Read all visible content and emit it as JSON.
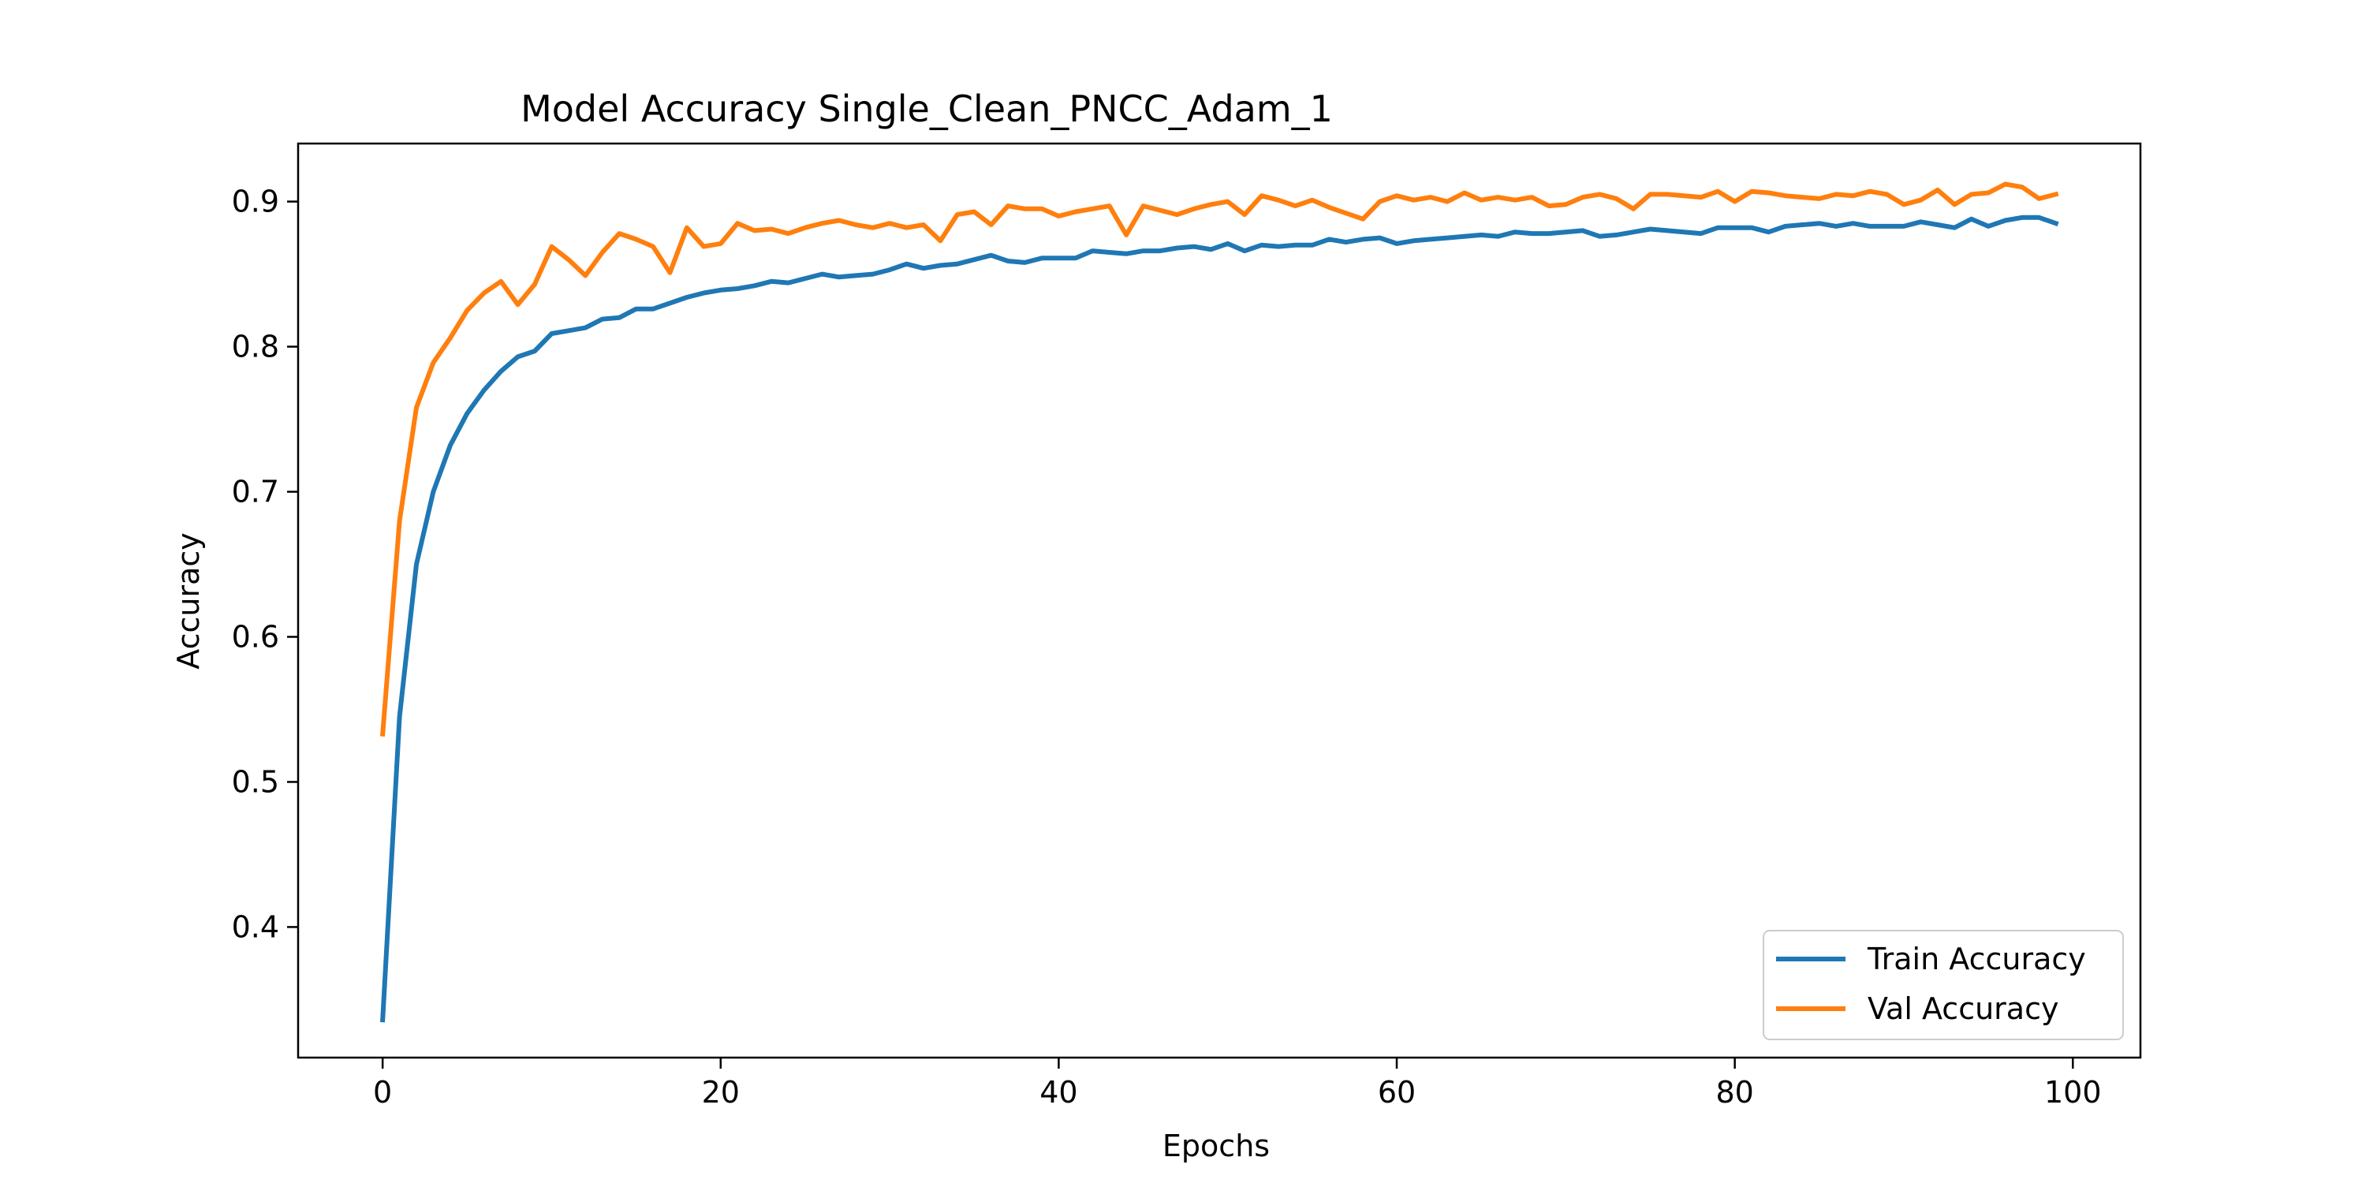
{
  "chart_data": {
    "type": "line",
    "title": "Model Accuracy Single_Clean_PNCC_Adam_1",
    "xlabel": "Epochs",
    "ylabel": "Accuracy",
    "xlim": [
      -5,
      104
    ],
    "ylim": [
      0.31,
      0.94
    ],
    "x_ticks": [
      0,
      20,
      40,
      60,
      80,
      100
    ],
    "y_ticks": [
      0.4,
      0.5,
      0.6,
      0.7,
      0.8,
      0.9
    ],
    "x_tick_labels": [
      "0",
      "20",
      "40",
      "60",
      "80",
      "100"
    ],
    "y_tick_labels": [
      "0.4",
      "0.5",
      "0.6",
      "0.7",
      "0.8",
      "0.9"
    ],
    "grid": false,
    "legend_position": "lower-right",
    "series": [
      {
        "name": "Train Accuracy",
        "color": "#1f77b4",
        "values": [
          0.336,
          0.545,
          0.65,
          0.7,
          0.732,
          0.754,
          0.77,
          0.783,
          0.793,
          0.797,
          0.809,
          0.811,
          0.813,
          0.819,
          0.82,
          0.826,
          0.826,
          0.83,
          0.834,
          0.837,
          0.839,
          0.84,
          0.842,
          0.845,
          0.844,
          0.847,
          0.85,
          0.848,
          0.849,
          0.85,
          0.853,
          0.857,
          0.854,
          0.856,
          0.857,
          0.86,
          0.863,
          0.859,
          0.858,
          0.861,
          0.861,
          0.861,
          0.866,
          0.865,
          0.864,
          0.866,
          0.866,
          0.868,
          0.869,
          0.867,
          0.871,
          0.866,
          0.87,
          0.869,
          0.87,
          0.87,
          0.874,
          0.872,
          0.874,
          0.875,
          0.871,
          0.873,
          0.874,
          0.875,
          0.876,
          0.877,
          0.876,
          0.879,
          0.878,
          0.878,
          0.879,
          0.88,
          0.876,
          0.877,
          0.879,
          0.881,
          0.88,
          0.879,
          0.878,
          0.882,
          0.882,
          0.882,
          0.879,
          0.883,
          0.884,
          0.885,
          0.883,
          0.885,
          0.883,
          0.883,
          0.883,
          0.886,
          0.884,
          0.882,
          0.888,
          0.883,
          0.887,
          0.889,
          0.889,
          0.885
        ]
      },
      {
        "name": "Val Accuracy",
        "color": "#ff7f0e",
        "values": [
          0.533,
          0.68,
          0.758,
          0.789,
          0.806,
          0.825,
          0.837,
          0.845,
          0.829,
          0.843,
          0.869,
          0.86,
          0.849,
          0.865,
          0.878,
          0.874,
          0.869,
          0.851,
          0.882,
          0.869,
          0.871,
          0.885,
          0.88,
          0.881,
          0.878,
          0.882,
          0.885,
          0.887,
          0.884,
          0.882,
          0.885,
          0.882,
          0.884,
          0.873,
          0.891,
          0.893,
          0.884,
          0.897,
          0.895,
          0.895,
          0.89,
          0.893,
          0.895,
          0.897,
          0.877,
          0.897,
          0.894,
          0.891,
          0.895,
          0.898,
          0.9,
          0.891,
          0.904,
          0.901,
          0.897,
          0.901,
          0.896,
          0.892,
          0.888,
          0.9,
          0.904,
          0.901,
          0.903,
          0.9,
          0.906,
          0.901,
          0.903,
          0.901,
          0.903,
          0.897,
          0.898,
          0.903,
          0.905,
          0.902,
          0.895,
          0.905,
          0.905,
          0.904,
          0.903,
          0.907,
          0.9,
          0.907,
          0.906,
          0.904,
          0.903,
          0.902,
          0.905,
          0.904,
          0.907,
          0.905,
          0.898,
          0.901,
          0.908,
          0.898,
          0.905,
          0.906,
          0.912,
          0.91,
          0.902,
          0.905
        ]
      }
    ]
  }
}
